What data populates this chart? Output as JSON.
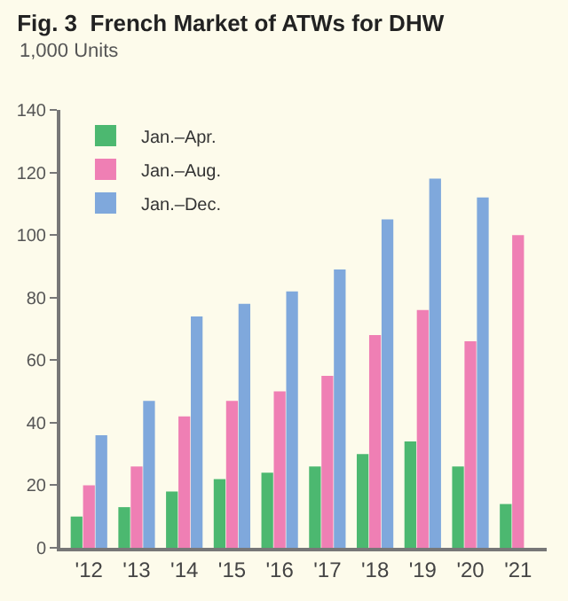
{
  "chart_data": {
    "type": "bar",
    "title": "Fig. 3  French Market of ATWs for DHW",
    "ylabel": "1,000 Units",
    "categories": [
      "'12",
      "'13",
      "'14",
      "'15",
      "'16",
      "'17",
      "'18",
      "'19",
      "'20",
      "'21"
    ],
    "series": [
      {
        "name": "Jan.–Apr.",
        "color": "#4cb870",
        "values": [
          10,
          13,
          18,
          22,
          24,
          26,
          30,
          34,
          26,
          14
        ]
      },
      {
        "name": "Jan.–Aug.",
        "color": "#ef7fb4",
        "values": [
          20,
          26,
          42,
          47,
          50,
          55,
          68,
          76,
          66,
          100
        ]
      },
      {
        "name": "Jan.–Dec.",
        "color": "#7fa8dc",
        "values": [
          36,
          47,
          74,
          78,
          82,
          89,
          105,
          118,
          112,
          null
        ]
      }
    ],
    "ylim": [
      0,
      140
    ],
    "yticks": [
      0,
      20,
      40,
      60,
      80,
      100,
      120,
      140
    ],
    "grid": false,
    "legend": "top left"
  }
}
